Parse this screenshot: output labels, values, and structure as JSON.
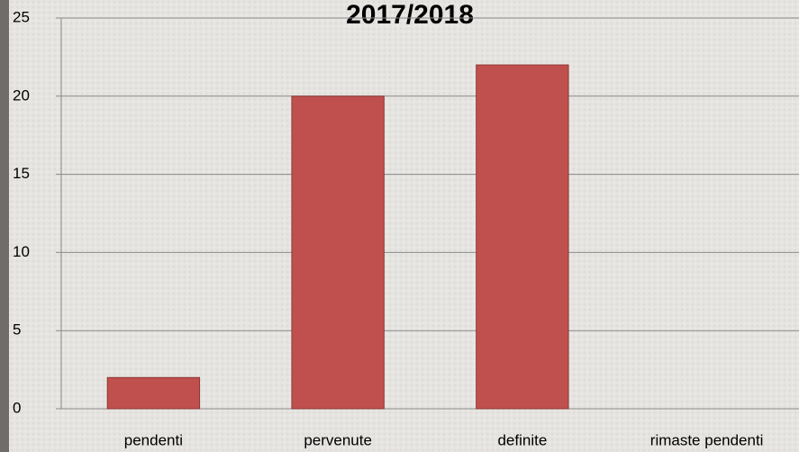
{
  "chart_data": {
    "type": "bar",
    "title": "2017/2018",
    "categories": [
      "pendenti",
      "pervenute",
      "definite",
      "rimaste pendenti"
    ],
    "values": [
      2,
      20,
      22,
      0
    ],
    "color": "#c0504d",
    "ylim": [
      0,
      25
    ],
    "yticks": [
      0,
      5,
      10,
      15,
      20,
      25
    ],
    "grid": true
  }
}
